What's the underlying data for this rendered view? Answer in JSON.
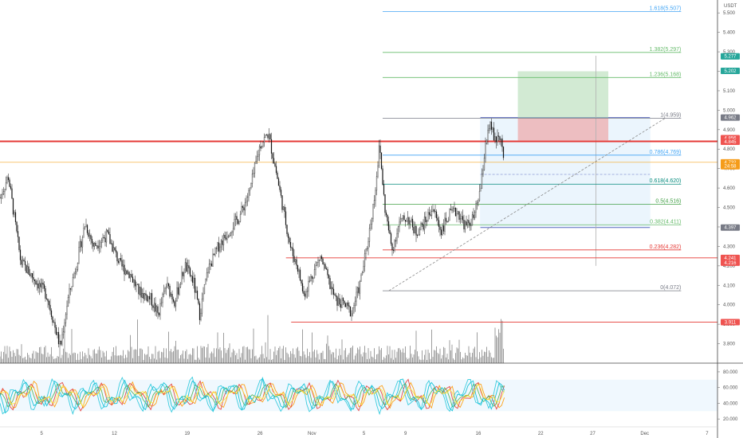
{
  "currency_label": "USDT",
  "chart_data": {
    "type": "candlestick",
    "price_axis": {
      "ylim": [
        3.7,
        5.55
      ],
      "ticks": [
        3.8,
        3.9,
        4.0,
        4.1,
        4.2,
        4.3,
        4.4,
        4.5,
        4.6,
        4.7,
        4.8,
        4.9,
        5.0,
        5.1,
        5.2,
        5.3,
        5.4,
        5.5
      ],
      "tick_labels": [
        "3.800",
        "3.900",
        "4.000",
        "4.100",
        "4.200",
        "4.300",
        "4.400",
        "4.500",
        "4.600",
        "4.700",
        "4.800",
        "4.900",
        "5.000",
        "5.100",
        "5.200",
        "5.300",
        "5.400",
        "5.500"
      ]
    },
    "oscillator_axis": {
      "ylim": [
        10,
        85
      ],
      "ticks": [
        20,
        40,
        60,
        80
      ],
      "tick_labels": [
        "20.000",
        "40.000",
        "60.000",
        "80.000"
      ],
      "band": [
        30,
        70
      ]
    },
    "x_axis": {
      "date_labels": [
        "5",
        "12",
        "19",
        "26",
        "Nov",
        "5",
        "9",
        "16",
        "22",
        "27",
        "Dec",
        "7"
      ],
      "date_positions": [
        5,
        12,
        19,
        26,
        31,
        36,
        40,
        47,
        53,
        58,
        63,
        69
      ],
      "x_range": [
        1,
        70
      ],
      "last_bar_x": 49.5
    },
    "fib_levels": [
      {
        "ratio": 0,
        "price": 4.072,
        "label": "0(4.072)",
        "color": "#787b86"
      },
      {
        "ratio": 0.236,
        "price": 4.282,
        "label": "0.236(4.282)",
        "color": "#e53935"
      },
      {
        "ratio": 0.382,
        "price": 4.411,
        "label": "0.382(4.411)",
        "color": "#66bb6a"
      },
      {
        "ratio": 0.5,
        "price": 4.516,
        "label": "0.5(4.516)",
        "color": "#43a047"
      },
      {
        "ratio": 0.618,
        "price": 4.62,
        "label": "0.618(4.620)",
        "color": "#00897b"
      },
      {
        "ratio": 0.786,
        "price": 4.769,
        "label": "0.786(4.769)",
        "color": "#42a5f5"
      },
      {
        "ratio": 1,
        "price": 4.959,
        "label": "1(4.959)",
        "color": "#787b86"
      },
      {
        "ratio": 1.236,
        "price": 5.168,
        "label": "1.236(5.168)",
        "color": "#66bb6a"
      },
      {
        "ratio": 1.382,
        "price": 5.297,
        "label": "1.382(5.297)",
        "color": "#66bb6a"
      },
      {
        "ratio": 1.618,
        "price": 5.507,
        "label": "1.618(5.507)",
        "color": "#42a5f5"
      }
    ],
    "horizontal_lines": [
      {
        "price": 4.84,
        "color": "#e53935",
        "width": 2
      },
      {
        "price": 4.732,
        "color": "#f5a623",
        "width": 0.6
      },
      {
        "price": 4.241,
        "color": "#e53935",
        "width": 0.8
      },
      {
        "price": 3.911,
        "color": "#e53935",
        "width": 0.8
      }
    ],
    "price_tags": [
      {
        "label": "5.277",
        "price": 5.277,
        "color": "#26a69a"
      },
      {
        "label": "5.202",
        "price": 5.202,
        "color": "#26a69a"
      },
      {
        "label": "4.962",
        "price": 4.962,
        "color": "#787b86"
      },
      {
        "label": "4.856",
        "price": 4.856,
        "color": "#ef5350"
      },
      {
        "label": "4.845",
        "price": 4.838,
        "color": "#ef5350"
      },
      {
        "label": "4.732",
        "price": 4.732,
        "color": "#f59c1a"
      },
      {
        "label": "24:58",
        "price": 4.712,
        "color": "#f59c1a"
      },
      {
        "label": "4.397",
        "price": 4.397,
        "color": "#787b86"
      },
      {
        "label": "4.241",
        "price": 4.241,
        "color": "#ef5350"
      },
      {
        "label": "4.216",
        "price": 4.216,
        "color": "#ef5350"
      },
      {
        "label": "3.911",
        "price": 3.911,
        "color": "#ef5350"
      }
    ],
    "long_position": {
      "x_start": 50.8,
      "x_end": 59.5,
      "entry": 4.845,
      "stop": 4.958,
      "target": 5.2
    },
    "range_box": {
      "x_start": 47.2,
      "x_end": 63.5,
      "top": 4.962,
      "bottom": 4.397,
      "mid": 4.67
    },
    "vertical_marker_x": 58.3,
    "vertical_marker_range": [
      4.2,
      5.28
    ],
    "trend_line": {
      "from": [
        38.4,
        4.072
      ],
      "to": [
        65,
        4.96
      ]
    },
    "fib_anchor_x": [
      37.8,
      66.5
    ]
  }
}
